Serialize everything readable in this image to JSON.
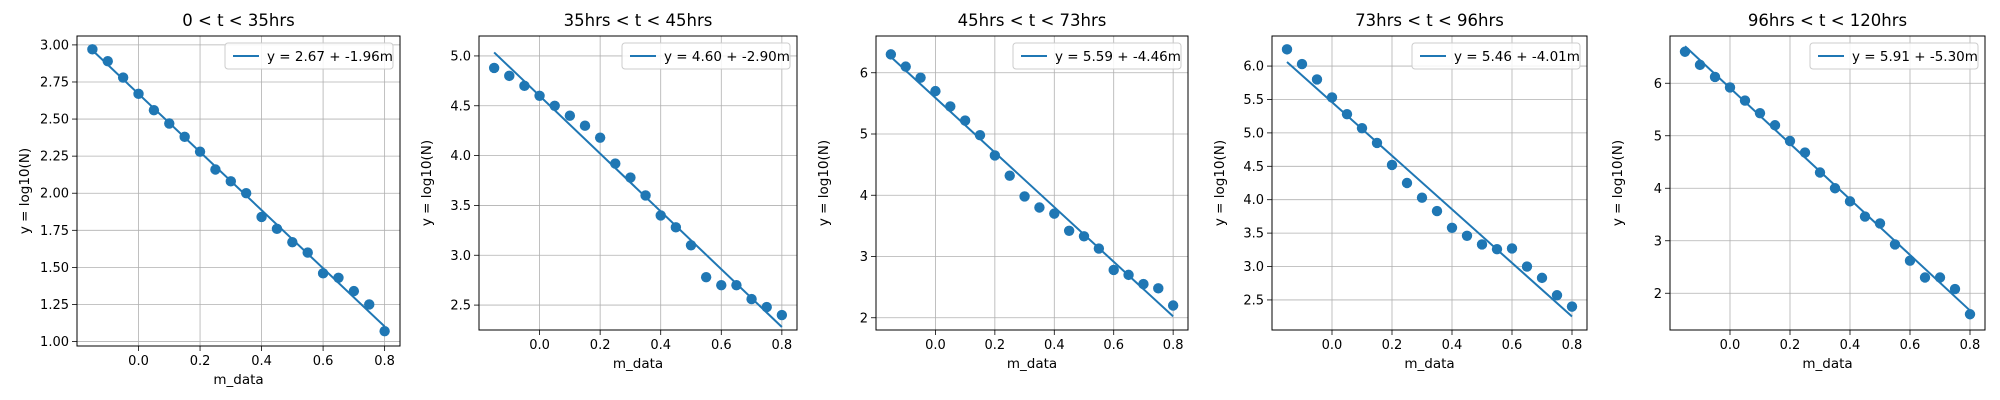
{
  "chart_data": [
    {
      "type": "scatter",
      "title": "0 < t < 35hrs",
      "xlabel": "m_data",
      "ylabel": "y = log10(N)",
      "xlim": [
        -0.2,
        0.85
      ],
      "ylim": [
        0.97,
        3.06
      ],
      "xticks": [
        0.0,
        0.2,
        0.4,
        0.6,
        0.8
      ],
      "xtick_labels": [
        "0.0",
        "0.2",
        "0.4",
        "0.6",
        "0.8"
      ],
      "yticks": [
        1.0,
        1.25,
        1.5,
        1.75,
        2.0,
        2.25,
        2.5,
        2.75,
        3.0
      ],
      "ytick_labels": [
        "1.00",
        "1.25",
        "1.50",
        "1.75",
        "2.00",
        "2.25",
        "2.50",
        "2.75",
        "3.00"
      ],
      "grid": true,
      "legend_position": "upper right",
      "series": [
        {
          "kind": "scatter",
          "color": "#1f77b4",
          "x": [
            -0.15,
            -0.1,
            -0.05,
            0.0,
            0.05,
            0.1,
            0.15,
            0.2,
            0.25,
            0.3,
            0.35,
            0.4,
            0.45,
            0.5,
            0.55,
            0.6,
            0.65,
            0.7,
            0.75,
            0.8
          ],
          "y": [
            2.97,
            2.89,
            2.78,
            2.67,
            2.56,
            2.47,
            2.38,
            2.28,
            2.16,
            2.08,
            2.0,
            1.84,
            1.76,
            1.67,
            1.6,
            1.46,
            1.43,
            1.34,
            1.25,
            1.07
          ]
        },
        {
          "kind": "line",
          "color": "#1f77b4",
          "name": "y = 2.67 + -1.96m",
          "intercept": 2.67,
          "slope": -1.96,
          "x_range": [
            -0.15,
            0.8
          ]
        }
      ]
    },
    {
      "type": "scatter",
      "title": "35hrs < t < 45hrs",
      "xlabel": "m_data",
      "ylabel": "y = log10(N)",
      "xlim": [
        -0.2,
        0.85
      ],
      "ylim": [
        2.25,
        5.2
      ],
      "xticks": [
        0.0,
        0.2,
        0.4,
        0.6,
        0.8
      ],
      "xtick_labels": [
        "0.0",
        "0.2",
        "0.4",
        "0.6",
        "0.8"
      ],
      "yticks": [
        2.5,
        3.0,
        3.5,
        4.0,
        4.5,
        5.0
      ],
      "ytick_labels": [
        "2.5",
        "3.0",
        "3.5",
        "4.0",
        "4.5",
        "5.0"
      ],
      "grid": true,
      "legend_position": "upper right",
      "series": [
        {
          "kind": "scatter",
          "color": "#1f77b4",
          "x": [
            -0.15,
            -0.1,
            -0.05,
            0.0,
            0.05,
            0.1,
            0.15,
            0.2,
            0.25,
            0.3,
            0.35,
            0.4,
            0.45,
            0.5,
            0.55,
            0.6,
            0.65,
            0.7,
            0.75,
            0.8
          ],
          "y": [
            4.88,
            4.8,
            4.7,
            4.6,
            4.5,
            4.4,
            4.3,
            4.18,
            3.92,
            3.78,
            3.6,
            3.4,
            3.28,
            3.1,
            2.78,
            2.7,
            2.7,
            2.56,
            2.48,
            2.4
          ]
        },
        {
          "kind": "line",
          "color": "#1f77b4",
          "name": "y = 4.60 + -2.90m",
          "intercept": 4.6,
          "slope": -2.9,
          "x_range": [
            -0.15,
            0.8
          ]
        }
      ]
    },
    {
      "type": "scatter",
      "title": "45hrs < t < 73hrs",
      "xlabel": "m_data",
      "ylabel": "y = log10(N)",
      "xlim": [
        -0.2,
        0.85
      ],
      "ylim": [
        1.8,
        6.6
      ],
      "xticks": [
        0.0,
        0.2,
        0.4,
        0.6,
        0.8
      ],
      "xtick_labels": [
        "0.0",
        "0.2",
        "0.4",
        "0.6",
        "0.8"
      ],
      "yticks": [
        2,
        3,
        4,
        5,
        6
      ],
      "ytick_labels": [
        "2",
        "3",
        "4",
        "5",
        "6"
      ],
      "grid": true,
      "legend_position": "upper right",
      "series": [
        {
          "kind": "scatter",
          "color": "#1f77b4",
          "x": [
            -0.15,
            -0.1,
            -0.05,
            0.0,
            0.05,
            0.1,
            0.15,
            0.2,
            0.25,
            0.3,
            0.35,
            0.4,
            0.45,
            0.5,
            0.55,
            0.6,
            0.65,
            0.7,
            0.75,
            0.8
          ],
          "y": [
            6.3,
            6.1,
            5.92,
            5.7,
            5.45,
            5.22,
            4.98,
            4.65,
            4.32,
            3.98,
            3.8,
            3.7,
            3.42,
            3.33,
            3.13,
            2.78,
            2.7,
            2.55,
            2.48,
            2.2
          ]
        },
        {
          "kind": "line",
          "color": "#1f77b4",
          "name": "y = 5.59 + -4.46m",
          "intercept": 5.59,
          "slope": -4.46,
          "x_range": [
            -0.15,
            0.8
          ]
        }
      ]
    },
    {
      "type": "scatter",
      "title": "73hrs < t < 96hrs",
      "xlabel": "m_data",
      "ylabel": "y = log10(N)",
      "xlim": [
        -0.2,
        0.85
      ],
      "ylim": [
        2.05,
        6.45
      ],
      "xticks": [
        0.0,
        0.2,
        0.4,
        0.6,
        0.8
      ],
      "xtick_labels": [
        "0.0",
        "0.2",
        "0.4",
        "0.6",
        "0.8"
      ],
      "yticks": [
        2.5,
        3.0,
        3.5,
        4.0,
        4.5,
        5.0,
        5.5,
        6.0
      ],
      "ytick_labels": [
        "2.5",
        "3.0",
        "3.5",
        "4.0",
        "4.5",
        "5.0",
        "5.5",
        "6.0"
      ],
      "grid": true,
      "legend_position": "upper right",
      "series": [
        {
          "kind": "scatter",
          "color": "#1f77b4",
          "x": [
            -0.15,
            -0.1,
            -0.05,
            0.0,
            0.05,
            0.1,
            0.15,
            0.2,
            0.25,
            0.3,
            0.35,
            0.4,
            0.45,
            0.5,
            0.55,
            0.6,
            0.65,
            0.7,
            0.75,
            0.8
          ],
          "y": [
            6.25,
            6.03,
            5.8,
            5.53,
            5.28,
            5.07,
            4.85,
            4.52,
            4.25,
            4.03,
            3.83,
            3.58,
            3.46,
            3.33,
            3.26,
            3.27,
            3.0,
            2.83,
            2.57,
            2.4
          ]
        },
        {
          "kind": "line",
          "color": "#1f77b4",
          "name": "y = 5.46 + -4.01m",
          "intercept": 5.46,
          "slope": -4.01,
          "x_range": [
            -0.15,
            0.8
          ]
        }
      ]
    },
    {
      "type": "scatter",
      "title": "96hrs < t < 120hrs",
      "xlabel": "m_data",
      "ylabel": "y = log10(N)",
      "xlim": [
        -0.2,
        0.85
      ],
      "ylim": [
        1.3,
        6.9
      ],
      "xticks": [
        0.0,
        0.2,
        0.4,
        0.6,
        0.8
      ],
      "xtick_labels": [
        "0.0",
        "0.2",
        "0.4",
        "0.6",
        "0.8"
      ],
      "yticks": [
        2,
        3,
        4,
        5,
        6
      ],
      "ytick_labels": [
        "2",
        "3",
        "4",
        "5",
        "6"
      ],
      "grid": true,
      "legend_position": "upper right",
      "series": [
        {
          "kind": "scatter",
          "color": "#1f77b4",
          "x": [
            -0.15,
            -0.1,
            -0.05,
            0.0,
            0.05,
            0.1,
            0.15,
            0.2,
            0.25,
            0.3,
            0.35,
            0.4,
            0.45,
            0.5,
            0.55,
            0.6,
            0.65,
            0.7,
            0.75,
            0.8
          ],
          "y": [
            6.6,
            6.35,
            6.12,
            5.92,
            5.67,
            5.43,
            5.2,
            4.9,
            4.68,
            4.3,
            4.0,
            3.75,
            3.46,
            3.33,
            2.93,
            2.62,
            2.3,
            2.3,
            2.08,
            1.6
          ]
        },
        {
          "kind": "line",
          "color": "#1f77b4",
          "name": "y = 5.91 + -5.30m",
          "intercept": 5.91,
          "slope": -5.3,
          "x_range": [
            -0.15,
            0.8
          ]
        }
      ]
    }
  ]
}
